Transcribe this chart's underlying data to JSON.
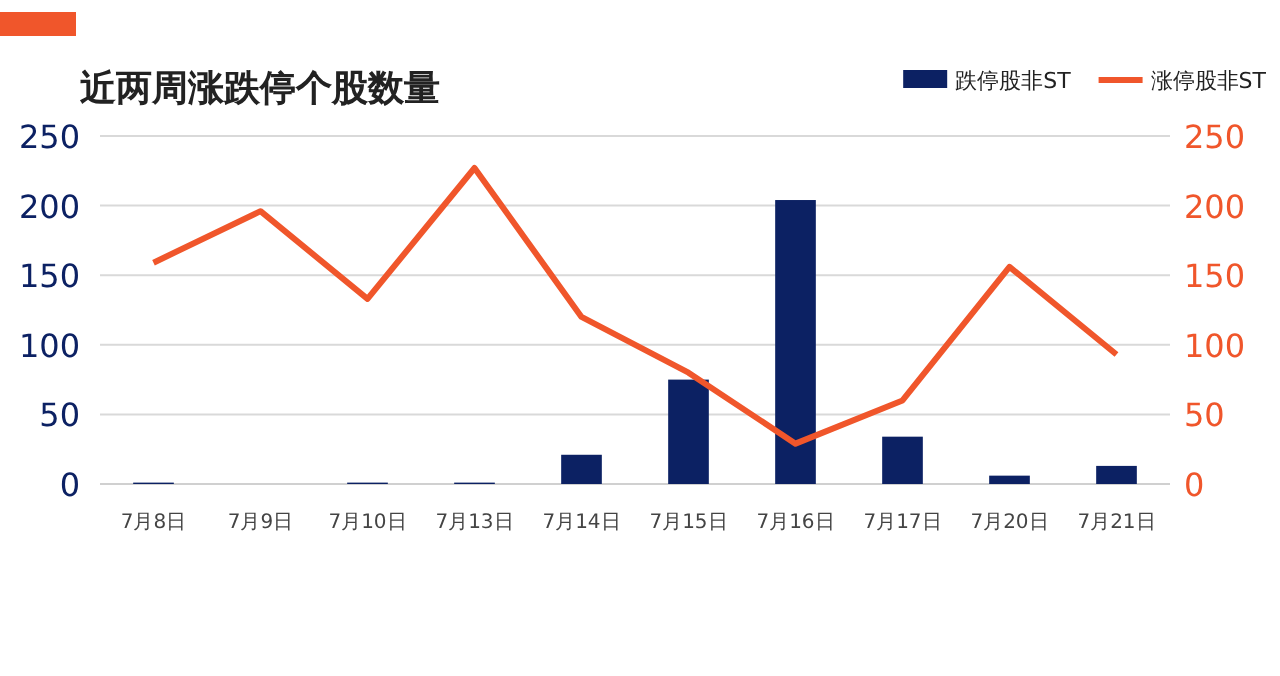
{
  "chart_data": {
    "type": "bar",
    "title": "近两周涨跌停个股数量",
    "categories": [
      "7月8日",
      "7月9日",
      "7月10日",
      "7月13日",
      "7月14日",
      "7月15日",
      "7月16日",
      "7月17日",
      "7月20日",
      "7月21日"
    ],
    "series": [
      {
        "name": "跌停股非ST",
        "color": "#0c2163",
        "values": [
          1,
          0,
          1,
          1,
          21,
          75,
          204,
          34,
          6,
          13
        ]
      },
      {
        "name": "涨停股非ST",
        "type": "line",
        "axis": "y2",
        "color": "#f0562b",
        "values": [
          159,
          196,
          133,
          227,
          120,
          80,
          29,
          60,
          156,
          93
        ]
      }
    ],
    "ylim": [
      0,
      250
    ],
    "yticks": [
      0,
      50,
      100,
      150,
      200,
      250
    ],
    "y2lim": [
      0,
      250
    ],
    "y2ticks": [
      0,
      50,
      100,
      150,
      200,
      250
    ],
    "grid": "y",
    "legend": "top right",
    "marker": "none",
    "line_style": "solid"
  }
}
